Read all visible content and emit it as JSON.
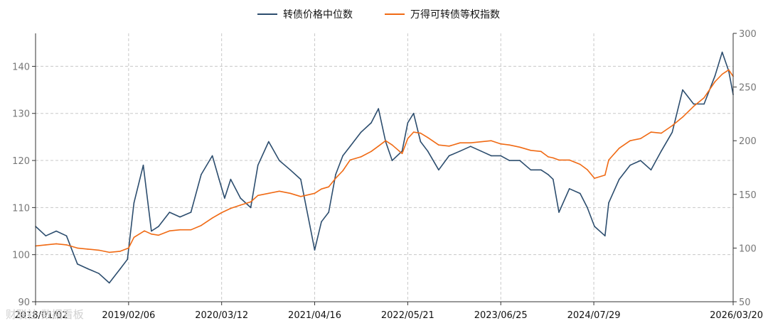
{
  "chart_data": {
    "type": "line",
    "title": "",
    "xlabel": "",
    "ylabel": "",
    "grid": true,
    "legend_position": "top-center",
    "x_ticks": [
      "2018/01/02",
      "2019/02/06",
      "2020/03/12",
      "2021/04/16",
      "2022/05/21",
      "2023/06/25",
      "2024/07/29",
      "2026/03/20"
    ],
    "y_left": {
      "ylim": [
        90,
        147
      ],
      "ticks": [
        90,
        100,
        110,
        120,
        130,
        140
      ]
    },
    "y_right": {
      "ylim": [
        50,
        300
      ],
      "ticks": [
        50,
        100,
        150,
        200,
        250,
        300
      ]
    },
    "series": [
      {
        "name": "转债价格中位数",
        "axis": "left",
        "color": "#2c4d6e",
        "x": [
          "2018/01/02",
          "2018/02/15",
          "2018/04/01",
          "2018/05/15",
          "2018/07/01",
          "2018/08/15",
          "2018/10/01",
          "2018/11/15",
          "2019/01/01",
          "2019/02/01",
          "2019/03/01",
          "2019/04/10",
          "2019/05/15",
          "2019/06/15",
          "2019/08/01",
          "2019/09/15",
          "2019/11/01",
          "2019/12/15",
          "2020/02/01",
          "2020/03/01",
          "2020/03/25",
          "2020/04/20",
          "2020/06/01",
          "2020/07/15",
          "2020/08/15",
          "2020/09/30",
          "2020/11/15",
          "2021/01/01",
          "2021/02/15",
          "2021/03/31",
          "2021/04/16",
          "2021/05/15",
          "2021/06/15",
          "2021/07/15",
          "2021/08/15",
          "2021/09/15",
          "2021/11/01",
          "2021/12/15",
          "2022/01/15",
          "2022/02/15",
          "2022/03/15",
          "2022/04/27",
          "2022/05/21",
          "2022/06/15",
          "2022/07/15",
          "2022/08/15",
          "2022/10/01",
          "2022/11/15",
          "2023/01/01",
          "2023/02/15",
          "2023/04/01",
          "2023/05/15",
          "2023/06/25",
          "2023/08/01",
          "2023/09/15",
          "2023/11/01",
          "2023/12/15",
          "2024/01/15",
          "2024/02/05",
          "2024/03/01",
          "2024/04/15",
          "2024/05/31",
          "2024/07/01",
          "2024/08/01",
          "2024/09/15",
          "2024/10/01",
          "2024/11/15",
          "2025/01/01",
          "2025/02/15",
          "2025/04/01",
          "2025/05/15",
          "2025/07/01",
          "2025/08/15",
          "2025/10/01",
          "2025/11/15",
          "2026/01/01",
          "2026/02/01",
          "2026/03/01",
          "2026/03/20"
        ],
        "values": [
          106,
          104,
          105,
          104,
          98,
          97,
          96,
          94,
          97,
          99,
          111,
          119,
          105,
          106,
          109,
          108,
          109,
          117,
          121,
          116,
          112,
          116,
          112,
          110,
          119,
          124,
          120,
          118,
          116,
          105,
          101,
          107,
          109,
          117,
          121,
          123,
          126,
          128,
          131,
          124,
          120,
          122,
          128,
          130,
          124,
          122,
          118,
          121,
          122,
          123,
          122,
          121,
          121,
          120,
          120,
          118,
          118,
          117,
          116,
          109,
          114,
          113,
          110,
          106,
          104,
          111,
          116,
          119,
          120,
          118,
          122,
          126,
          135,
          132,
          132,
          138,
          143,
          139,
          134
        ]
      },
      {
        "name": "万得可转债等权指数",
        "axis": "right",
        "color": "#f06a14",
        "x": [
          "2018/01/02",
          "2018/02/15",
          "2018/04/01",
          "2018/05/15",
          "2018/07/01",
          "2018/08/15",
          "2018/10/01",
          "2018/11/15",
          "2019/01/01",
          "2019/02/06",
          "2019/03/01",
          "2019/04/15",
          "2019/05/15",
          "2019/06/15",
          "2019/08/01",
          "2019/09/15",
          "2019/11/01",
          "2019/12/15",
          "2020/02/01",
          "2020/03/12",
          "2020/04/20",
          "2020/06/01",
          "2020/07/15",
          "2020/08/15",
          "2020/09/30",
          "2020/11/15",
          "2021/01/01",
          "2021/02/15",
          "2021/04/16",
          "2021/05/15",
          "2021/06/15",
          "2021/07/15",
          "2021/08/15",
          "2021/09/15",
          "2021/11/01",
          "2021/12/15",
          "2022/01/15",
          "2022/02/15",
          "2022/03/15",
          "2022/04/27",
          "2022/05/21",
          "2022/06/15",
          "2022/07/15",
          "2022/08/15",
          "2022/10/01",
          "2022/11/15",
          "2023/01/01",
          "2023/02/15",
          "2023/04/01",
          "2023/05/15",
          "2023/06/25",
          "2023/08/01",
          "2023/09/15",
          "2023/11/01",
          "2023/12/15",
          "2024/01/15",
          "2024/02/05",
          "2024/03/01",
          "2024/04/15",
          "2024/05/31",
          "2024/07/01",
          "2024/08/01",
          "2024/09/15",
          "2024/10/01",
          "2024/11/15",
          "2025/01/01",
          "2025/02/15",
          "2025/04/01",
          "2025/05/15",
          "2025/07/01",
          "2025/08/15",
          "2025/10/01",
          "2025/11/15",
          "2026/01/01",
          "2026/02/01",
          "2026/03/01",
          "2026/03/20"
        ],
        "values": [
          102,
          103,
          104,
          103,
          100,
          99,
          98,
          96,
          97,
          100,
          110,
          116,
          113,
          112,
          116,
          117,
          117,
          121,
          128,
          133,
          137,
          140,
          143,
          149,
          151,
          153,
          151,
          148,
          151,
          155,
          157,
          165,
          172,
          182,
          185,
          190,
          195,
          200,
          196,
          188,
          202,
          208,
          207,
          203,
          196,
          195,
          198,
          198,
          199,
          200,
          197,
          196,
          194,
          191,
          190,
          185,
          184,
          182,
          182,
          178,
          173,
          165,
          168,
          182,
          193,
          200,
          202,
          208,
          207,
          214,
          222,
          232,
          240,
          255,
          262,
          266,
          260
        ]
      }
    ]
  },
  "watermark": "财联社·数据看板"
}
